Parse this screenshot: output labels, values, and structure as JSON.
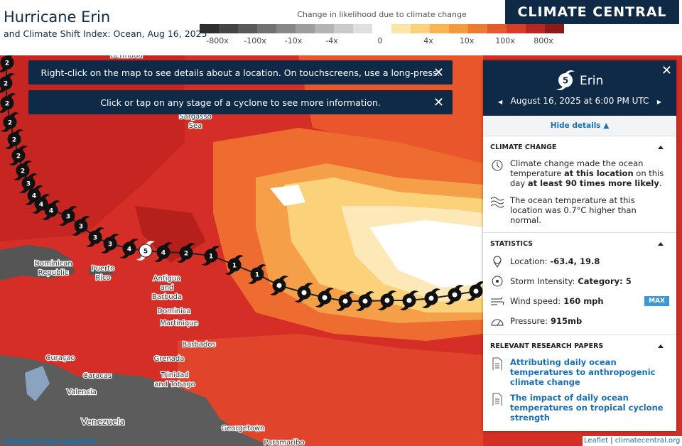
{
  "header": {
    "title": "Hurricane Erin",
    "subtitle": "and Climate Shift Index: Ocean, Aug 16, 2025"
  },
  "legend": {
    "title": "Change in likelihood due to climate change",
    "labels": [
      "-800x",
      "-100x",
      "-10x",
      "-4x",
      "0",
      "4x",
      "10x",
      "100x",
      "800x"
    ],
    "colors": [
      "#2e2e2e",
      "#444444",
      "#5a5a5a",
      "#707070",
      "#878787",
      "#9d9d9d",
      "#b4b4b4",
      "#cacaca",
      "#e0e0e0",
      "#ffffff",
      "#fde6a8",
      "#fbd27a",
      "#f9b550",
      "#f59a3a",
      "#ef7a30",
      "#e55a2c",
      "#d83c28",
      "#b8261f",
      "#8c1a18"
    ]
  },
  "logo": "CLIMATE CENTRAL",
  "notices": [
    "Right-click on the map to see details about a location. On touchscreens, use a long-press.",
    "Click or tap on any stage of a cyclone to see more information."
  ],
  "map_labels": [
    {
      "lines": [
        "Bermuda"
      ]
    },
    {
      "lines": [
        "Sargasso",
        "Sea"
      ]
    },
    {
      "lines": [
        "Dominican",
        "Republic"
      ]
    },
    {
      "lines": [
        "Puerto",
        "Rico"
      ]
    },
    {
      "lines": [
        "Antigua",
        "and",
        "Barbuda"
      ]
    },
    {
      "lines": [
        "Dominica"
      ]
    },
    {
      "lines": [
        "Martinique"
      ]
    },
    {
      "lines": [
        "Barbados"
      ]
    },
    {
      "lines": [
        "Grenada"
      ]
    },
    {
      "lines": [
        "Trinidad",
        "and Tobago"
      ]
    },
    {
      "lines": [
        "Curaçao"
      ]
    },
    {
      "lines": [
        "Caracas"
      ]
    },
    {
      "lines": [
        "Valencia"
      ]
    },
    {
      "lines": [
        "Venezuela"
      ]
    },
    {
      "lines": [
        "Georgetown"
      ]
    },
    {
      "lines": [
        "Paramaribo"
      ]
    }
  ],
  "track": {
    "stages": [
      "2",
      "2",
      "2",
      "2",
      "2",
      "2",
      "2",
      "3",
      "4",
      "4",
      "4",
      "3",
      "3",
      "3",
      "3",
      "4",
      "5",
      "4",
      "2",
      "1",
      "1",
      "1",
      null,
      null,
      null,
      null,
      null,
      null,
      null,
      null,
      null,
      null
    ]
  },
  "panel": {
    "category": "5",
    "name": "Erin",
    "date": "August 16, 2025 at 6:00 PM UTC",
    "toggle": "Hide details",
    "climate_change": {
      "heading": "CLIMATE CHANGE",
      "text1": [
        "Climate change made the ocean temperature ",
        "at this location",
        " on this day ",
        "at least 90 times more likely",
        "."
      ],
      "text2": "The ocean temperature at this location was 0.7°C higher than normal."
    },
    "statistics": {
      "heading": "STATISTICS",
      "items": [
        {
          "label": "Location:",
          "value": "-63.4, 19.8"
        },
        {
          "label": "Storm Intensity:",
          "value": "Category: 5"
        },
        {
          "label": "Wind speed:",
          "value": "160 mph",
          "badge": "MAX"
        },
        {
          "label": "Pressure:",
          "value": "915mb"
        }
      ]
    },
    "papers": {
      "heading": "RELEVANT RESEARCH PAPERS",
      "items": [
        "Attributing daily ocean temperatures to anthropogenic climate change",
        "The impact of daily ocean temperatures on tropical cyclone strength"
      ]
    }
  },
  "footer": {
    "contact": "Contact our experts",
    "attribution": [
      "Leaflet",
      "climatecentral.org"
    ]
  }
}
